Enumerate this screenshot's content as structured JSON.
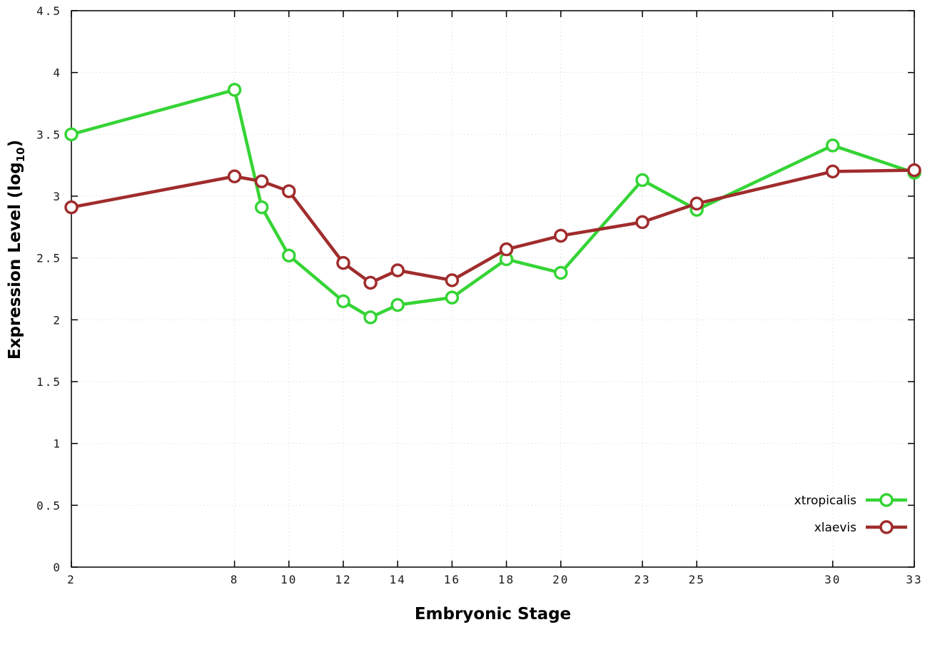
{
  "chart_data": {
    "type": "line",
    "title": "",
    "xlabel": "Embryonic Stage",
    "ylabel": "Expression Level (log10)",
    "ylabel_parts": {
      "pre": "Expression Level (log",
      "sub": "10",
      "post": ")"
    },
    "xlim": [
      2,
      33
    ],
    "ylim": [
      0,
      4.5
    ],
    "x_ticks": [
      2,
      8,
      10,
      12,
      14,
      16,
      18,
      20,
      23,
      25,
      30,
      33
    ],
    "x_tick_labels": [
      "2",
      "8",
      "10",
      "12",
      "14",
      "16",
      "18",
      "20",
      "23",
      "25",
      "30",
      "33"
    ],
    "y_ticks": [
      0,
      0.5,
      1,
      1.5,
      2,
      2.5,
      3,
      3.5,
      4,
      4.5
    ],
    "y_tick_labels": [
      "0",
      "0.5",
      "1",
      "1.5",
      "2",
      "2.5",
      "3",
      "3.5",
      "4",
      "4.5"
    ],
    "grid": true,
    "legend_position": "inside-bottom-right",
    "marker": "open-circle",
    "background": "#ffffff",
    "x": [
      2,
      8,
      9,
      10,
      12,
      13,
      14,
      16,
      18,
      20,
      23,
      25,
      30,
      33
    ],
    "series": [
      {
        "name": "xtropicalis",
        "color": "#35d435",
        "values": [
          3.5,
          3.86,
          2.91,
          2.52,
          2.15,
          2.02,
          2.12,
          2.18,
          2.49,
          2.38,
          3.13,
          2.89,
          3.41,
          3.19
        ]
      },
      {
        "name": "xlaevis",
        "color": "#a02c2c",
        "values": [
          2.91,
          3.16,
          3.12,
          3.04,
          2.46,
          2.3,
          2.4,
          2.32,
          2.57,
          2.68,
          2.79,
          2.94,
          3.2,
          3.21
        ]
      }
    ]
  }
}
